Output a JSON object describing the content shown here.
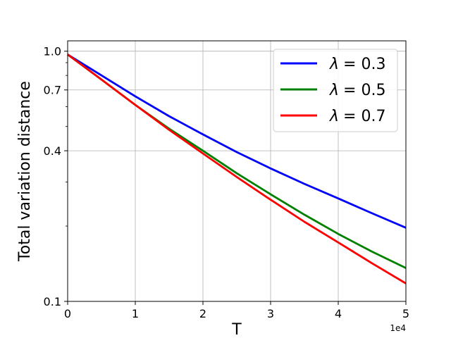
{
  "chart_data": {
    "type": "line",
    "xlabel": "T",
    "ylabel": "Total variation distance",
    "x_offset_label": "1e4",
    "xlim": [
      0,
      5
    ],
    "ylim": [
      0.1,
      1.1
    ],
    "yscale": "log",
    "grid": true,
    "legend_position": "top-right",
    "x_ticks": [
      0,
      1,
      2,
      3,
      4,
      5
    ],
    "x_tick_labels": [
      "0",
      "1",
      "2",
      "3",
      "4",
      "5"
    ],
    "y_ticks": [
      0.1,
      0.4,
      0.7,
      1.0
    ],
    "y_tick_labels": [
      "0.1",
      "0.4",
      "0.7",
      "1.0"
    ],
    "x": [
      0,
      0.5,
      1,
      1.5,
      2,
      2.5,
      3,
      3.5,
      4,
      4.5,
      5
    ],
    "series": [
      {
        "name": "λ = 0.3",
        "legend_symbol": "λ",
        "legend_value": "= 0.3",
        "color": "#0000ff",
        "values": [
          0.97,
          0.8,
          0.66,
          0.55,
          0.465,
          0.395,
          0.34,
          0.295,
          0.258,
          0.225,
          0.197
        ]
      },
      {
        "name": "λ = 0.5",
        "legend_symbol": "λ",
        "legend_value": "= 0.5",
        "color": "#008000",
        "values": [
          0.97,
          0.77,
          0.61,
          0.49,
          0.4,
          0.325,
          0.268,
          0.222,
          0.186,
          0.158,
          0.136
        ]
      },
      {
        "name": "λ = 0.7",
        "legend_symbol": "λ",
        "legend_value": "= 0.7",
        "color": "#ff0000",
        "values": [
          0.97,
          0.77,
          0.61,
          0.485,
          0.39,
          0.314,
          0.255,
          0.208,
          0.172,
          0.142,
          0.118
        ]
      }
    ]
  }
}
